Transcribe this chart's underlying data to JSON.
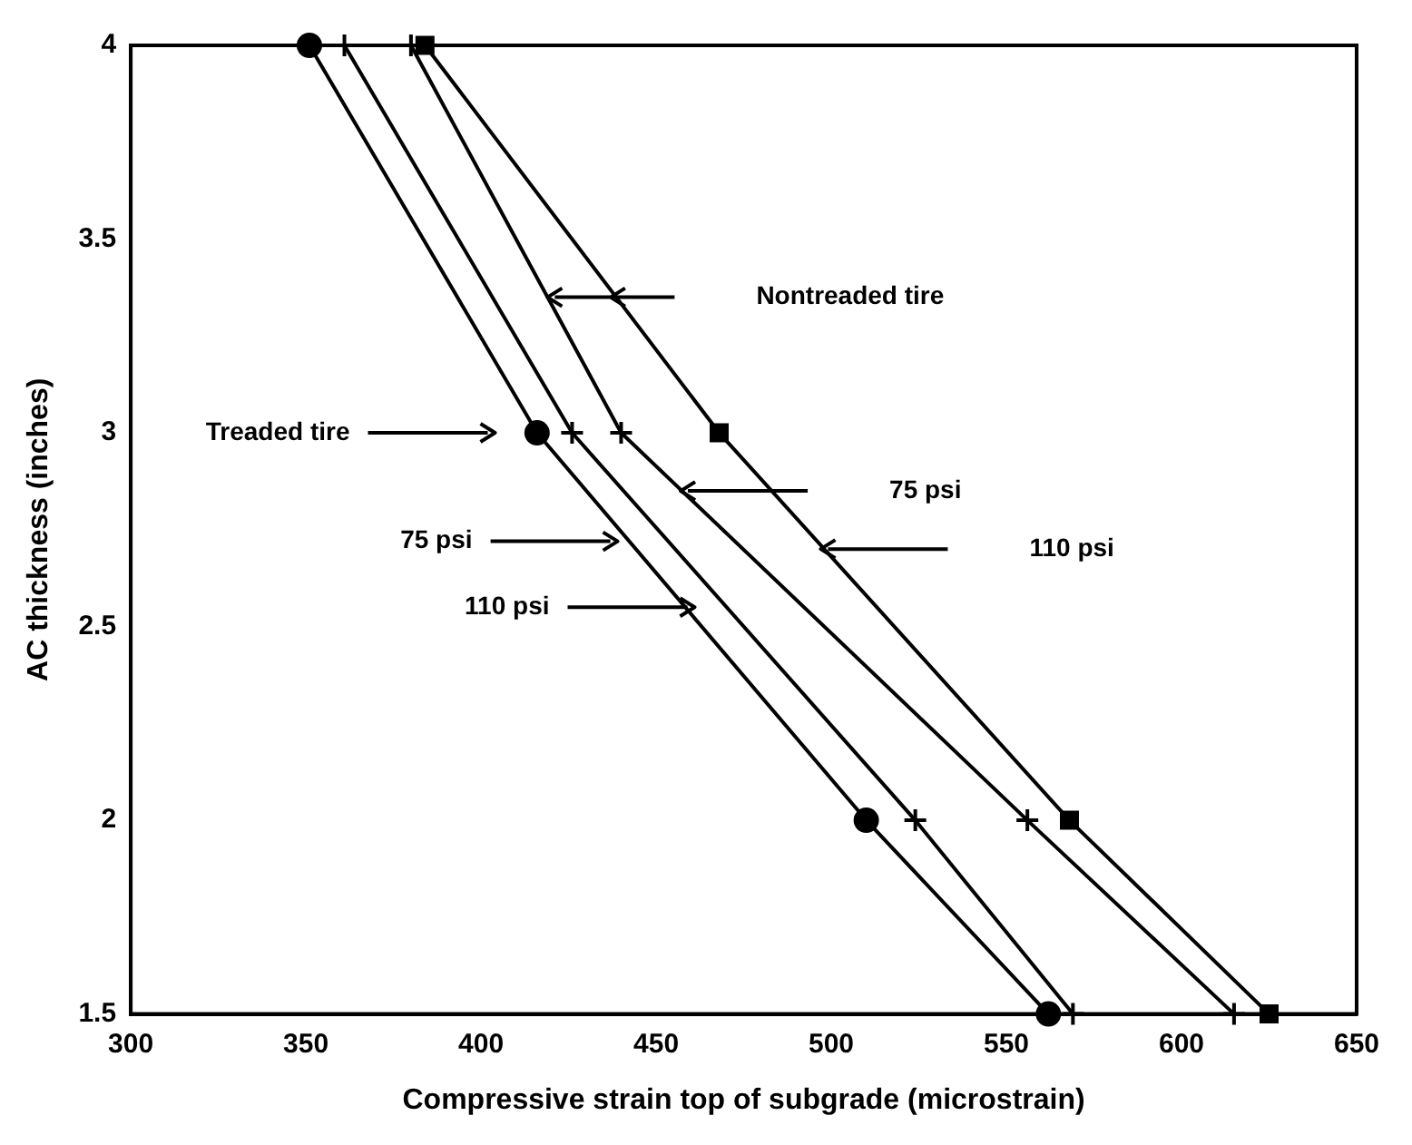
{
  "chart_data": {
    "type": "line",
    "xlabel": "Compressive strain top of subgrade (microstrain)",
    "ylabel": "AC thickness (inches)",
    "xlim": [
      300,
      650
    ],
    "xticks": [
      300,
      350,
      400,
      450,
      500,
      550,
      600,
      650
    ],
    "ylim": [
      1.5,
      4
    ],
    "yticks": [
      1.5,
      2,
      2.5,
      3,
      3.5,
      4
    ],
    "grid": false,
    "legend": false,
    "line_style": "solid",
    "series": [
      {
        "color": "#000000",
        "marker": "circle",
        "x": [
          351,
          416,
          510,
          562
        ],
        "values": [
          4,
          3,
          2,
          1.5
        ]
      },
      {
        "color": "#000000",
        "marker": "cross",
        "x": [
          361,
          426,
          524,
          569
        ],
        "values": [
          4,
          3,
          2,
          1.5
        ]
      },
      {
        "color": "#000000",
        "marker": "cross",
        "x": [
          380,
          440,
          556,
          615
        ],
        "values": [
          4,
          3,
          2,
          1.5
        ]
      },
      {
        "color": "#000000",
        "marker": "square",
        "x": [
          384,
          468,
          568,
          625
        ],
        "values": [
          4,
          3,
          2,
          1.5
        ]
      }
    ],
    "annotations": [
      "Treaded tire",
      "75 psi",
      "110 psi",
      "Nontreaded tire",
      "75 psi",
      "110 psi"
    ]
  }
}
